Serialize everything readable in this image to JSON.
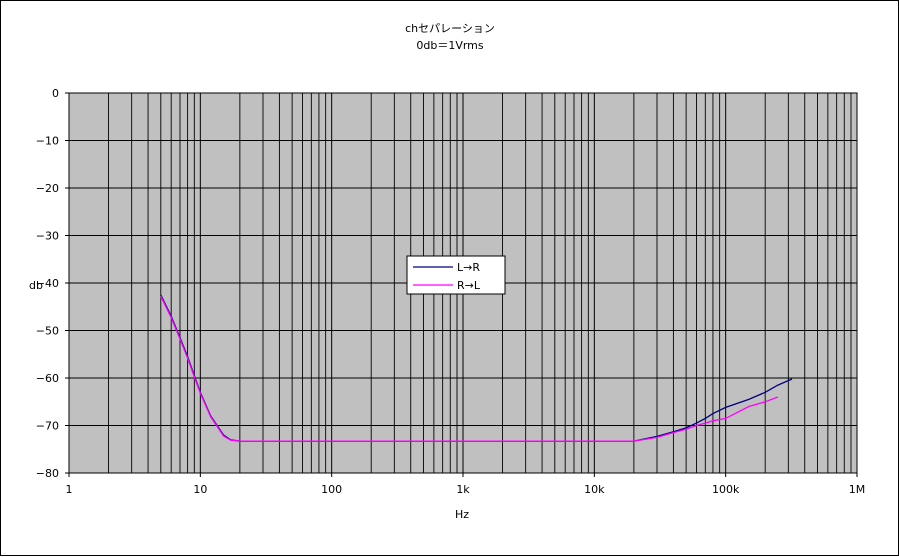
{
  "chart_data": {
    "type": "line",
    "title": "chセパレーション",
    "subtitle": "0db＝1Vrms",
    "xlabel": "Hz",
    "ylabel": "db",
    "x_scale": "log",
    "xlim": [
      1,
      1000000
    ],
    "ylim": [
      -80,
      0
    ],
    "grid": true,
    "legend_position": "center",
    "plot_background": "#c0c0c0",
    "x_ticks": [
      {
        "value": 1,
        "label": "1"
      },
      {
        "value": 10,
        "label": "10"
      },
      {
        "value": 100,
        "label": "100"
      },
      {
        "value": 1000,
        "label": "1k"
      },
      {
        "value": 10000,
        "label": "10k"
      },
      {
        "value": 100000,
        "label": "100k"
      },
      {
        "value": 1000000,
        "label": "1M"
      }
    ],
    "y_ticks": [
      {
        "value": 0,
        "label": "0"
      },
      {
        "value": -10,
        "label": "−10"
      },
      {
        "value": -20,
        "label": "−20"
      },
      {
        "value": -30,
        "label": "−30"
      },
      {
        "value": -40,
        "label": "−40"
      },
      {
        "value": -50,
        "label": "−50"
      },
      {
        "value": -60,
        "label": "−60"
      },
      {
        "value": -70,
        "label": "−70"
      },
      {
        "value": -80,
        "label": "−80"
      }
    ],
    "series": [
      {
        "name": "L→R",
        "color": "#000080",
        "points": [
          [
            5,
            -42.5
          ],
          [
            6,
            -47
          ],
          [
            7,
            -51.5
          ],
          [
            8,
            -55.5
          ],
          [
            9,
            -59.5
          ],
          [
            10,
            -63
          ],
          [
            12,
            -68
          ],
          [
            15,
            -72
          ],
          [
            17,
            -73
          ],
          [
            20,
            -73.3
          ],
          [
            100,
            -73.3
          ],
          [
            1000,
            -73.3
          ],
          [
            10000,
            -73.3
          ],
          [
            20000,
            -73.3
          ],
          [
            30000,
            -72.3
          ],
          [
            40000,
            -71.3
          ],
          [
            50000,
            -70.5
          ],
          [
            60000,
            -69.5
          ],
          [
            70000,
            -68.5
          ],
          [
            80000,
            -67.5
          ],
          [
            100000,
            -66.2
          ],
          [
            150000,
            -64.5
          ],
          [
            200000,
            -63
          ],
          [
            250000,
            -61.5
          ],
          [
            320000,
            -60.2
          ]
        ]
      },
      {
        "name": "R→L",
        "color": "#ff00ff",
        "points": [
          [
            5,
            -42.8
          ],
          [
            6,
            -47.3
          ],
          [
            7,
            -51.8
          ],
          [
            8,
            -55.8
          ],
          [
            9,
            -59.8
          ],
          [
            10,
            -63.2
          ],
          [
            12,
            -68.2
          ],
          [
            15,
            -72.2
          ],
          [
            17,
            -73.1
          ],
          [
            20,
            -73.3
          ],
          [
            100,
            -73.3
          ],
          [
            1000,
            -73.3
          ],
          [
            10000,
            -73.3
          ],
          [
            20000,
            -73.3
          ],
          [
            30000,
            -72.5
          ],
          [
            40000,
            -71.5
          ],
          [
            50000,
            -70.8
          ],
          [
            60000,
            -70
          ],
          [
            70000,
            -69.5
          ],
          [
            80000,
            -69
          ],
          [
            100000,
            -68.5
          ],
          [
            150000,
            -66
          ],
          [
            200000,
            -65
          ],
          [
            250000,
            -64
          ]
        ]
      }
    ]
  }
}
